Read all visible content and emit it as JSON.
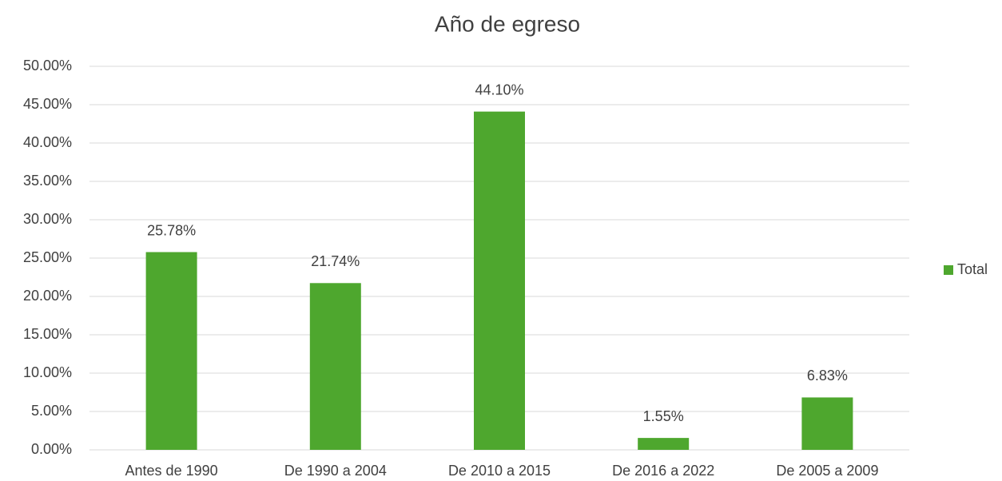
{
  "chart_data": {
    "type": "bar",
    "title": "Año de egreso",
    "categories": [
      "Antes de 1990",
      "De 1990 a 2004",
      "De 2010 a 2015",
      "De 2016 a 2022",
      "De 2005 a 2009"
    ],
    "series": [
      {
        "name": "Total",
        "color": "#4ea72e",
        "values": [
          25.78,
          21.74,
          44.1,
          1.55,
          6.83
        ],
        "value_labels": [
          "25.78%",
          "21.74%",
          "44.10%",
          "1.55%",
          "6.83%"
        ]
      }
    ],
    "ylim": [
      0,
      50
    ],
    "yticks": [
      {
        "value": 0,
        "label": "0.00%"
      },
      {
        "value": 5,
        "label": "5.00%"
      },
      {
        "value": 10,
        "label": "10.00%"
      },
      {
        "value": 15,
        "label": "15.00%"
      },
      {
        "value": 20,
        "label": "20.00%"
      },
      {
        "value": 25,
        "label": "25.00%"
      },
      {
        "value": 30,
        "label": "30.00%"
      },
      {
        "value": 35,
        "label": "35.00%"
      },
      {
        "value": 40,
        "label": "40.00%"
      },
      {
        "value": 45,
        "label": "45.00%"
      },
      {
        "value": 50,
        "label": "50.00%"
      }
    ],
    "grid": true,
    "legend": "right"
  }
}
